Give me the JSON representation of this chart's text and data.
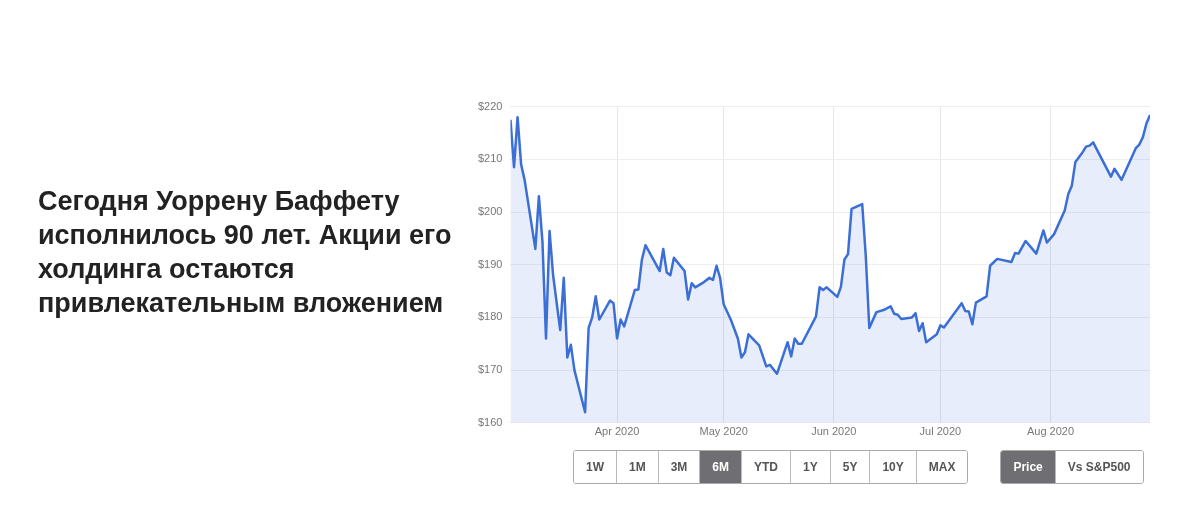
{
  "chart_data": {
    "type": "area",
    "title": "Сегодня Уоррену Баффету исполнилось 90 лет. Акции его холдинга остаются привлекательным вложением",
    "x": [
      "2020-03-02",
      "2020-03-03",
      "2020-03-04",
      "2020-03-05",
      "2020-03-06",
      "2020-03-09",
      "2020-03-10",
      "2020-03-11",
      "2020-03-12",
      "2020-03-13",
      "2020-03-14",
      "2020-03-16",
      "2020-03-17",
      "2020-03-18",
      "2020-03-19",
      "2020-03-20",
      "2020-03-23",
      "2020-03-24",
      "2020-03-25",
      "2020-03-26",
      "2020-03-27",
      "2020-03-30",
      "2020-03-31",
      "2020-04-01",
      "2020-04-02",
      "2020-04-03",
      "2020-04-06",
      "2020-04-07",
      "2020-04-08",
      "2020-04-09",
      "2020-04-13",
      "2020-04-14",
      "2020-04-15",
      "2020-04-16",
      "2020-04-17",
      "2020-04-20",
      "2020-04-21",
      "2020-04-22",
      "2020-04-23",
      "2020-04-25",
      "2020-04-27",
      "2020-04-28",
      "2020-04-29",
      "2020-04-30",
      "2020-05-01",
      "2020-05-03",
      "2020-05-05",
      "2020-05-06",
      "2020-05-07",
      "2020-05-08",
      "2020-05-11",
      "2020-05-13",
      "2020-05-14",
      "2020-05-16",
      "2020-05-19",
      "2020-05-20",
      "2020-05-21",
      "2020-05-22",
      "2020-05-23",
      "2020-05-27",
      "2020-05-28",
      "2020-05-29",
      "2020-05-30",
      "2020-06-02",
      "2020-06-03",
      "2020-06-04",
      "2020-06-05",
      "2020-06-06",
      "2020-06-09",
      "2020-06-10",
      "2020-06-11",
      "2020-06-13",
      "2020-06-15",
      "2020-06-17",
      "2020-06-18",
      "2020-06-19",
      "2020-06-20",
      "2020-06-23",
      "2020-06-24",
      "2020-06-25",
      "2020-06-26",
      "2020-06-27",
      "2020-06-30",
      "2020-07-01",
      "2020-07-02",
      "2020-07-07",
      "2020-07-08",
      "2020-07-09",
      "2020-07-10",
      "2020-07-11",
      "2020-07-14",
      "2020-07-15",
      "2020-07-17",
      "2020-07-21",
      "2020-07-22",
      "2020-07-23",
      "2020-07-25",
      "2020-07-28",
      "2020-07-30",
      "2020-07-31",
      "2020-08-02",
      "2020-08-05",
      "2020-08-06",
      "2020-08-07",
      "2020-08-08",
      "2020-08-10",
      "2020-08-11",
      "2020-08-12",
      "2020-08-13",
      "2020-08-18",
      "2020-08-19",
      "2020-08-21",
      "2020-08-25",
      "2020-08-26",
      "2020-08-27",
      "2020-08-28",
      "2020-08-29"
    ],
    "series": [
      {
        "color": "#3b6fd6",
        "values": [
          217.5,
          208.5,
          218,
          209,
          206,
          193,
          203,
          194.4,
          176,
          196.4,
          188,
          177.6,
          187.5,
          172.4,
          174.8,
          170,
          162,
          178,
          180,
          184,
          179.6,
          183.2,
          182.7,
          176,
          179.6,
          178.3,
          185.2,
          185.3,
          191,
          193.7,
          188.8,
          193,
          188.5,
          188,
          191.3,
          188.8,
          183.4,
          186.5,
          185.7,
          186.5,
          187.5,
          187.1,
          189.8,
          187.5,
          182.5,
          179.6,
          176,
          172.4,
          173.4,
          176.8,
          174.7,
          170.7,
          171,
          169.3,
          175.3,
          172.6,
          176,
          175,
          175,
          180.2,
          185.7,
          185.2,
          185.7,
          183.9,
          185.8,
          191,
          192,
          200.6,
          201.5,
          191.7,
          178,
          181,
          181.4,
          182.1,
          180.7,
          180.5,
          179.7,
          180,
          180.8,
          177.4,
          178.9,
          175.3,
          176.8,
          178.5,
          178.1,
          182.7,
          181.2,
          181.1,
          178.7,
          182.8,
          184,
          189.8,
          191.1,
          190.5,
          192.2,
          192.1,
          194.5,
          192.1,
          196.5,
          194.2,
          195.8,
          200.3,
          203.4,
          205,
          209.5,
          211.3,
          212.4,
          212.6,
          213.2,
          206.7,
          208.2,
          206.1,
          212.1,
          212.8,
          214.2,
          216.8,
          218.4
        ]
      }
    ],
    "xlim": [
      "2020-03-02",
      "2020-08-29"
    ],
    "xticks": [
      {
        "value": "2020-04-01",
        "label": "Apr 2020"
      },
      {
        "value": "2020-05-01",
        "label": "May 2020"
      },
      {
        "value": "2020-06-01",
        "label": "Jun 2020"
      },
      {
        "value": "2020-07-01",
        "label": "Jul 2020"
      },
      {
        "value": "2020-08-01",
        "label": "Aug 2020"
      }
    ],
    "ylim": [
      160,
      220
    ],
    "yticks": [
      {
        "value": 160,
        "label": "$160"
      },
      {
        "value": 170,
        "label": "$170"
      },
      {
        "value": 180,
        "label": "$180"
      },
      {
        "value": 190,
        "label": "$190"
      },
      {
        "value": 200,
        "label": "$200"
      },
      {
        "value": 210,
        "label": "$210"
      },
      {
        "value": 220,
        "label": "$220"
      }
    ],
    "grid": true,
    "legend": false,
    "marker": "none",
    "line_style": "solid",
    "annotations": [
      "1W",
      "1M",
      "3M",
      "6M",
      "YTD",
      "1Y",
      "5Y",
      "10Y",
      "MAX",
      "Price",
      "Vs S&P500"
    ]
  }
}
